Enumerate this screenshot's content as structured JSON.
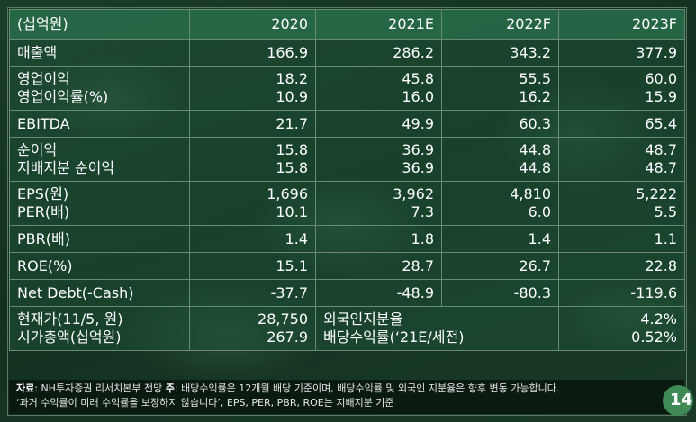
{
  "header": [
    "(십억원)",
    "2020",
    "2021E",
    "2022F",
    "2023F"
  ],
  "rows": [
    {
      "labels": [
        "매출액"
      ],
      "cols": [
        [
          "166.9"
        ],
        [
          "286.2"
        ],
        [
          "343.2"
        ],
        [
          "377.9"
        ]
      ]
    },
    {
      "labels": [
        "영업이익",
        "영업이익률(%)"
      ],
      "cols": [
        [
          "18.2",
          "10.9"
        ],
        [
          "45.8",
          "16.0"
        ],
        [
          "55.5",
          "16.2"
        ],
        [
          "60.0",
          "15.9"
        ]
      ]
    },
    {
      "labels": [
        "EBITDA"
      ],
      "cols": [
        [
          "21.7"
        ],
        [
          "49.9"
        ],
        [
          "60.3"
        ],
        [
          "65.4"
        ]
      ]
    },
    {
      "labels": [
        "순이익",
        "지배지분 순이익"
      ],
      "cols": [
        [
          "15.8",
          "15.8"
        ],
        [
          "36.9",
          "36.9"
        ],
        [
          "44.8",
          "44.8"
        ],
        [
          "48.7",
          "48.7"
        ]
      ]
    },
    {
      "labels": [
        "EPS(원)",
        "PER(배)"
      ],
      "cols": [
        [
          "1,696",
          "10.1"
        ],
        [
          "3,962",
          "7.3"
        ],
        [
          "4,810",
          "6.0"
        ],
        [
          "5,222",
          "5.5"
        ]
      ]
    },
    {
      "labels": [
        "PBR(배)"
      ],
      "cols": [
        [
          "1.4"
        ],
        [
          "1.8"
        ],
        [
          "1.4"
        ],
        [
          "1.1"
        ]
      ]
    },
    {
      "labels": [
        "ROE(%)"
      ],
      "cols": [
        [
          "15.1"
        ],
        [
          "28.7"
        ],
        [
          "26.7"
        ],
        [
          "22.8"
        ]
      ]
    },
    {
      "labels": [
        "Net Debt(-Cash)"
      ],
      "cols": [
        [
          "-37.7"
        ],
        [
          "-48.9"
        ],
        [
          "-80.3"
        ],
        [
          "-119.6"
        ]
      ]
    }
  ],
  "summary": {
    "left_labels": [
      "현재가(11/5, 원)",
      "시가총액(십억원)"
    ],
    "left_values": [
      "28,750",
      "267.9"
    ],
    "right_labels": [
      "외국인지분율",
      "배당수익률(‘21E/세전)"
    ],
    "right_values": [
      "4.2%",
      "0.52%"
    ]
  },
  "footer": {
    "source_label": "자료",
    "source_text": ": NH투자증권 리서치본부 전망",
    "note_label": "주",
    "note_text": ": 배당수익률은 12개월 배당 기준이며, 배당수익률 및 외국인 지분율은 향후 변동 가능합니다.",
    "line2": "‘과거 수익률이 미래 수익률을 보장하지 않습니다’, EPS, PER, PBR, ROE는 지배지분 기준"
  },
  "page_number": "14"
}
